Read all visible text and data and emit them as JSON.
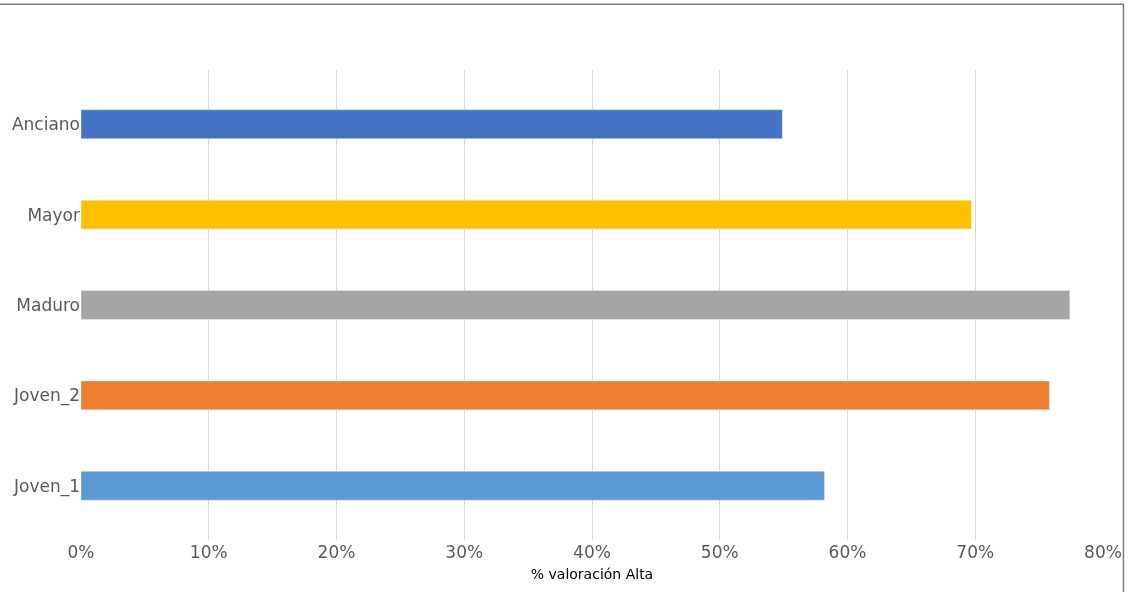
{
  "chart_data": {
    "type": "bar",
    "orientation": "horizontal",
    "xlabel": "% valoración Alta",
    "categories": [
      "Anciano",
      "Mayor",
      "Maduro",
      "Joven_2",
      "Joven_1"
    ],
    "values": [
      54.9,
      69.7,
      77.4,
      75.8,
      58.2
    ],
    "colors": [
      "#4472c4",
      "#ffc000",
      "#a5a5a5",
      "#ed7d31",
      "#5b9bd5"
    ],
    "xlim": [
      0,
      80
    ],
    "xticks": [
      {
        "value": 0,
        "label": "0%"
      },
      {
        "value": 10,
        "label": "10%"
      },
      {
        "value": 20,
        "label": "20%"
      },
      {
        "value": 30,
        "label": "30%"
      },
      {
        "value": 40,
        "label": "40%"
      },
      {
        "value": 50,
        "label": "50%"
      },
      {
        "value": 60,
        "label": "60%"
      },
      {
        "value": 70,
        "label": "70%"
      },
      {
        "value": 80,
        "label": "80%"
      }
    ],
    "grid": "x"
  }
}
